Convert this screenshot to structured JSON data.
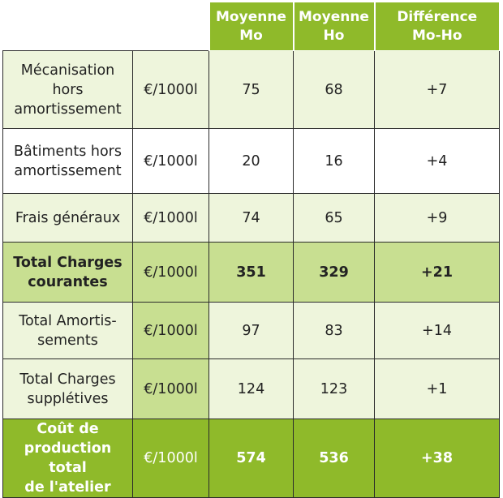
{
  "headers": [
    "Moyenne Mo",
    "Moyenne Ho",
    "Différence Mo-Ho"
  ],
  "headers_lines": [
    [
      "Moyenne",
      "Mo"
    ],
    [
      "Moyenne",
      "Ho"
    ],
    [
      "Différence",
      "Mo-Ho"
    ]
  ],
  "rows": [
    {
      "label_lines": [
        "Mécanisation",
        "hors",
        "amortissement"
      ],
      "unit": "€/1000l",
      "mo": "75",
      "ho": "68",
      "diff": "+7"
    },
    {
      "label_lines": [
        "Bâtiments hors",
        "amortissement"
      ],
      "unit": "€/1000l",
      "mo": "20",
      "ho": "16",
      "diff": "+4"
    },
    {
      "label_lines": [
        "Frais généraux"
      ],
      "unit": "€/1000l",
      "mo": "74",
      "ho": "65",
      "diff": "+9"
    },
    {
      "label_lines": [
        "Total Charges",
        "courantes"
      ],
      "unit": "€/1000l",
      "mo": "351",
      "ho": "329",
      "diff": "+21"
    },
    {
      "label_lines": [
        "Total Amortis-",
        "sements"
      ],
      "unit": "€/1000l",
      "mo": "97",
      "ho": "83",
      "diff": "+14"
    },
    {
      "label_lines": [
        "Total Charges",
        "supplétives"
      ],
      "unit": "€/1000l",
      "mo": "124",
      "ho": "123",
      "diff": "+1"
    },
    {
      "label_lines": [
        "Coût de",
        "production total",
        "de l'atelier"
      ],
      "unit": "€/1000l",
      "mo": "574",
      "ho": "536",
      "diff": "+38"
    }
  ],
  "colors": {
    "header_green": "#8fba2a",
    "light_green": "#eef5dc",
    "mid_green": "#c8df91",
    "border": "#2b2b2b"
  }
}
